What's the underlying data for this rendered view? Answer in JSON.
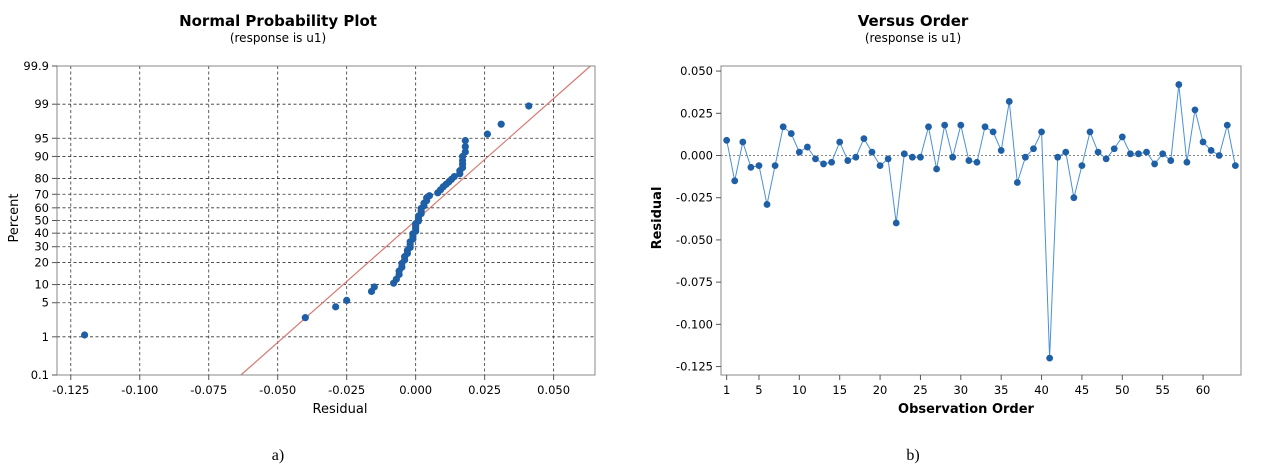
{
  "colors": {
    "point": "#1f5fa6",
    "fit_line": "#d77a72",
    "series_line": "#4a90d9",
    "ref_line": "#888888"
  },
  "captions": [
    "a)",
    "b)"
  ],
  "chart_data": [
    {
      "type": "scatter",
      "title": "Normal Probability Plot",
      "subtitle": "(response is u1)",
      "xlabel": "Residual",
      "ylabel": "Percent",
      "xlim": [
        -0.13,
        0.065
      ],
      "yscale": "normal-probability",
      "ylim": [
        0.1,
        99.9
      ],
      "x_ticks": [
        -0.125,
        -0.1,
        -0.075,
        -0.05,
        -0.025,
        0.0,
        0.025,
        0.05
      ],
      "x_tick_labels": [
        "-0.125",
        "-0.100",
        "-0.075",
        "-0.050",
        "-0.025",
        "0.000",
        "0.025",
        "0.050"
      ],
      "y_ticks": [
        0.1,
        1,
        5,
        10,
        20,
        30,
        40,
        50,
        60,
        70,
        80,
        90,
        95,
        99,
        99.9
      ],
      "y_tick_labels": [
        "0.1",
        "1",
        "5",
        "10",
        "20",
        "30",
        "40",
        "50",
        "60",
        "70",
        "80",
        "90",
        "95",
        "99",
        "99.9"
      ],
      "grid": true,
      "fit_line": {
        "mean": 0.0,
        "sd": 0.0205
      },
      "points": [
        [
          -0.12,
          1.1
        ],
        [
          -0.04,
          2.6
        ],
        [
          -0.029,
          4.2
        ],
        [
          -0.025,
          5.5
        ],
        [
          -0.016,
          7.8
        ],
        [
          -0.015,
          9.2
        ],
        [
          -0.008,
          10.5
        ],
        [
          -0.007,
          12.0
        ],
        [
          -0.006,
          14.0
        ],
        [
          -0.006,
          15.6
        ],
        [
          -0.005,
          17.5
        ],
        [
          -0.005,
          19.5
        ],
        [
          -0.004,
          21.5
        ],
        [
          -0.004,
          23.5
        ],
        [
          -0.003,
          25.5
        ],
        [
          -0.003,
          27.5
        ],
        [
          -0.002,
          29.5
        ],
        [
          -0.002,
          31.5
        ],
        [
          -0.002,
          33.5
        ],
        [
          -0.001,
          35.5
        ],
        [
          -0.001,
          37.5
        ],
        [
          -0.001,
          39.5
        ],
        [
          0.0,
          41.5
        ],
        [
          0.0,
          43.5
        ],
        [
          0.0,
          45.5
        ],
        [
          0.0,
          47.5
        ],
        [
          0.001,
          49.5
        ],
        [
          0.001,
          51.5
        ],
        [
          0.001,
          53.5
        ],
        [
          0.002,
          55.5
        ],
        [
          0.002,
          57.5
        ],
        [
          0.002,
          59.5
        ],
        [
          0.003,
          61.5
        ],
        [
          0.003,
          63.5
        ],
        [
          0.004,
          65.5
        ],
        [
          0.004,
          67.5
        ],
        [
          0.005,
          69.0
        ],
        [
          0.008,
          71.0
        ],
        [
          0.009,
          73.0
        ],
        [
          0.01,
          75.0
        ],
        [
          0.011,
          76.5
        ],
        [
          0.012,
          78.0
        ],
        [
          0.013,
          79.5
        ],
        [
          0.014,
          81.0
        ],
        [
          0.016,
          82.5
        ],
        [
          0.016,
          84.0
        ],
        [
          0.017,
          85.5
        ],
        [
          0.017,
          87.0
        ],
        [
          0.017,
          88.5
        ],
        [
          0.017,
          90.0
        ],
        [
          0.018,
          91.5
        ],
        [
          0.018,
          93.0
        ],
        [
          0.018,
          94.5
        ],
        [
          0.026,
          95.8
        ],
        [
          0.031,
          97.3
        ],
        [
          0.041,
          98.9
        ]
      ]
    },
    {
      "type": "line",
      "title": "Versus Order",
      "subtitle": "(response is u1)",
      "xlabel": "Observation Order",
      "ylabel": "Residual",
      "xlim": [
        0.3,
        64.7
      ],
      "ylim": [
        -0.13,
        0.053
      ],
      "x_ticks": [
        1,
        5,
        10,
        15,
        20,
        25,
        30,
        35,
        40,
        45,
        50,
        55,
        60
      ],
      "y_ticks": [
        0.05,
        0.025,
        0.0,
        -0.025,
        -0.05,
        -0.075,
        -0.1,
        -0.125
      ],
      "y_tick_labels": [
        "0.050",
        "0.025",
        "0.000",
        "-0.025",
        "-0.050",
        "-0.075",
        "-0.100",
        "-0.125"
      ],
      "reference_line": 0.0,
      "x": [
        1,
        2,
        3,
        4,
        5,
        6,
        7,
        8,
        9,
        10,
        11,
        12,
        13,
        14,
        15,
        16,
        17,
        18,
        19,
        20,
        21,
        22,
        23,
        24,
        25,
        26,
        27,
        28,
        29,
        30,
        31,
        32,
        33,
        34,
        35,
        36,
        37,
        38,
        39,
        40,
        41,
        42,
        43,
        44,
        45,
        46,
        47,
        48,
        49,
        50,
        51,
        52,
        53,
        54,
        55,
        56,
        57,
        58,
        59,
        60,
        61,
        62,
        63,
        64
      ],
      "values": [
        0.009,
        -0.015,
        0.008,
        -0.007,
        -0.006,
        -0.029,
        -0.006,
        0.017,
        0.013,
        0.002,
        0.005,
        -0.002,
        -0.005,
        -0.004,
        0.008,
        -0.003,
        -0.001,
        0.01,
        0.002,
        -0.006,
        -0.002,
        -0.04,
        0.001,
        -0.001,
        -0.001,
        0.017,
        -0.008,
        0.018,
        -0.001,
        0.018,
        -0.003,
        -0.004,
        0.017,
        0.014,
        0.003,
        0.032,
        -0.016,
        -0.001,
        0.004,
        0.014,
        -0.12,
        -0.001,
        0.002,
        -0.025,
        -0.006,
        0.014,
        0.002,
        -0.002,
        0.004,
        0.011,
        0.001,
        0.001,
        0.002,
        -0.005,
        0.001,
        -0.003,
        0.042,
        -0.004,
        0.027,
        0.008,
        0.003,
        0.0,
        0.018,
        -0.006
      ]
    }
  ]
}
